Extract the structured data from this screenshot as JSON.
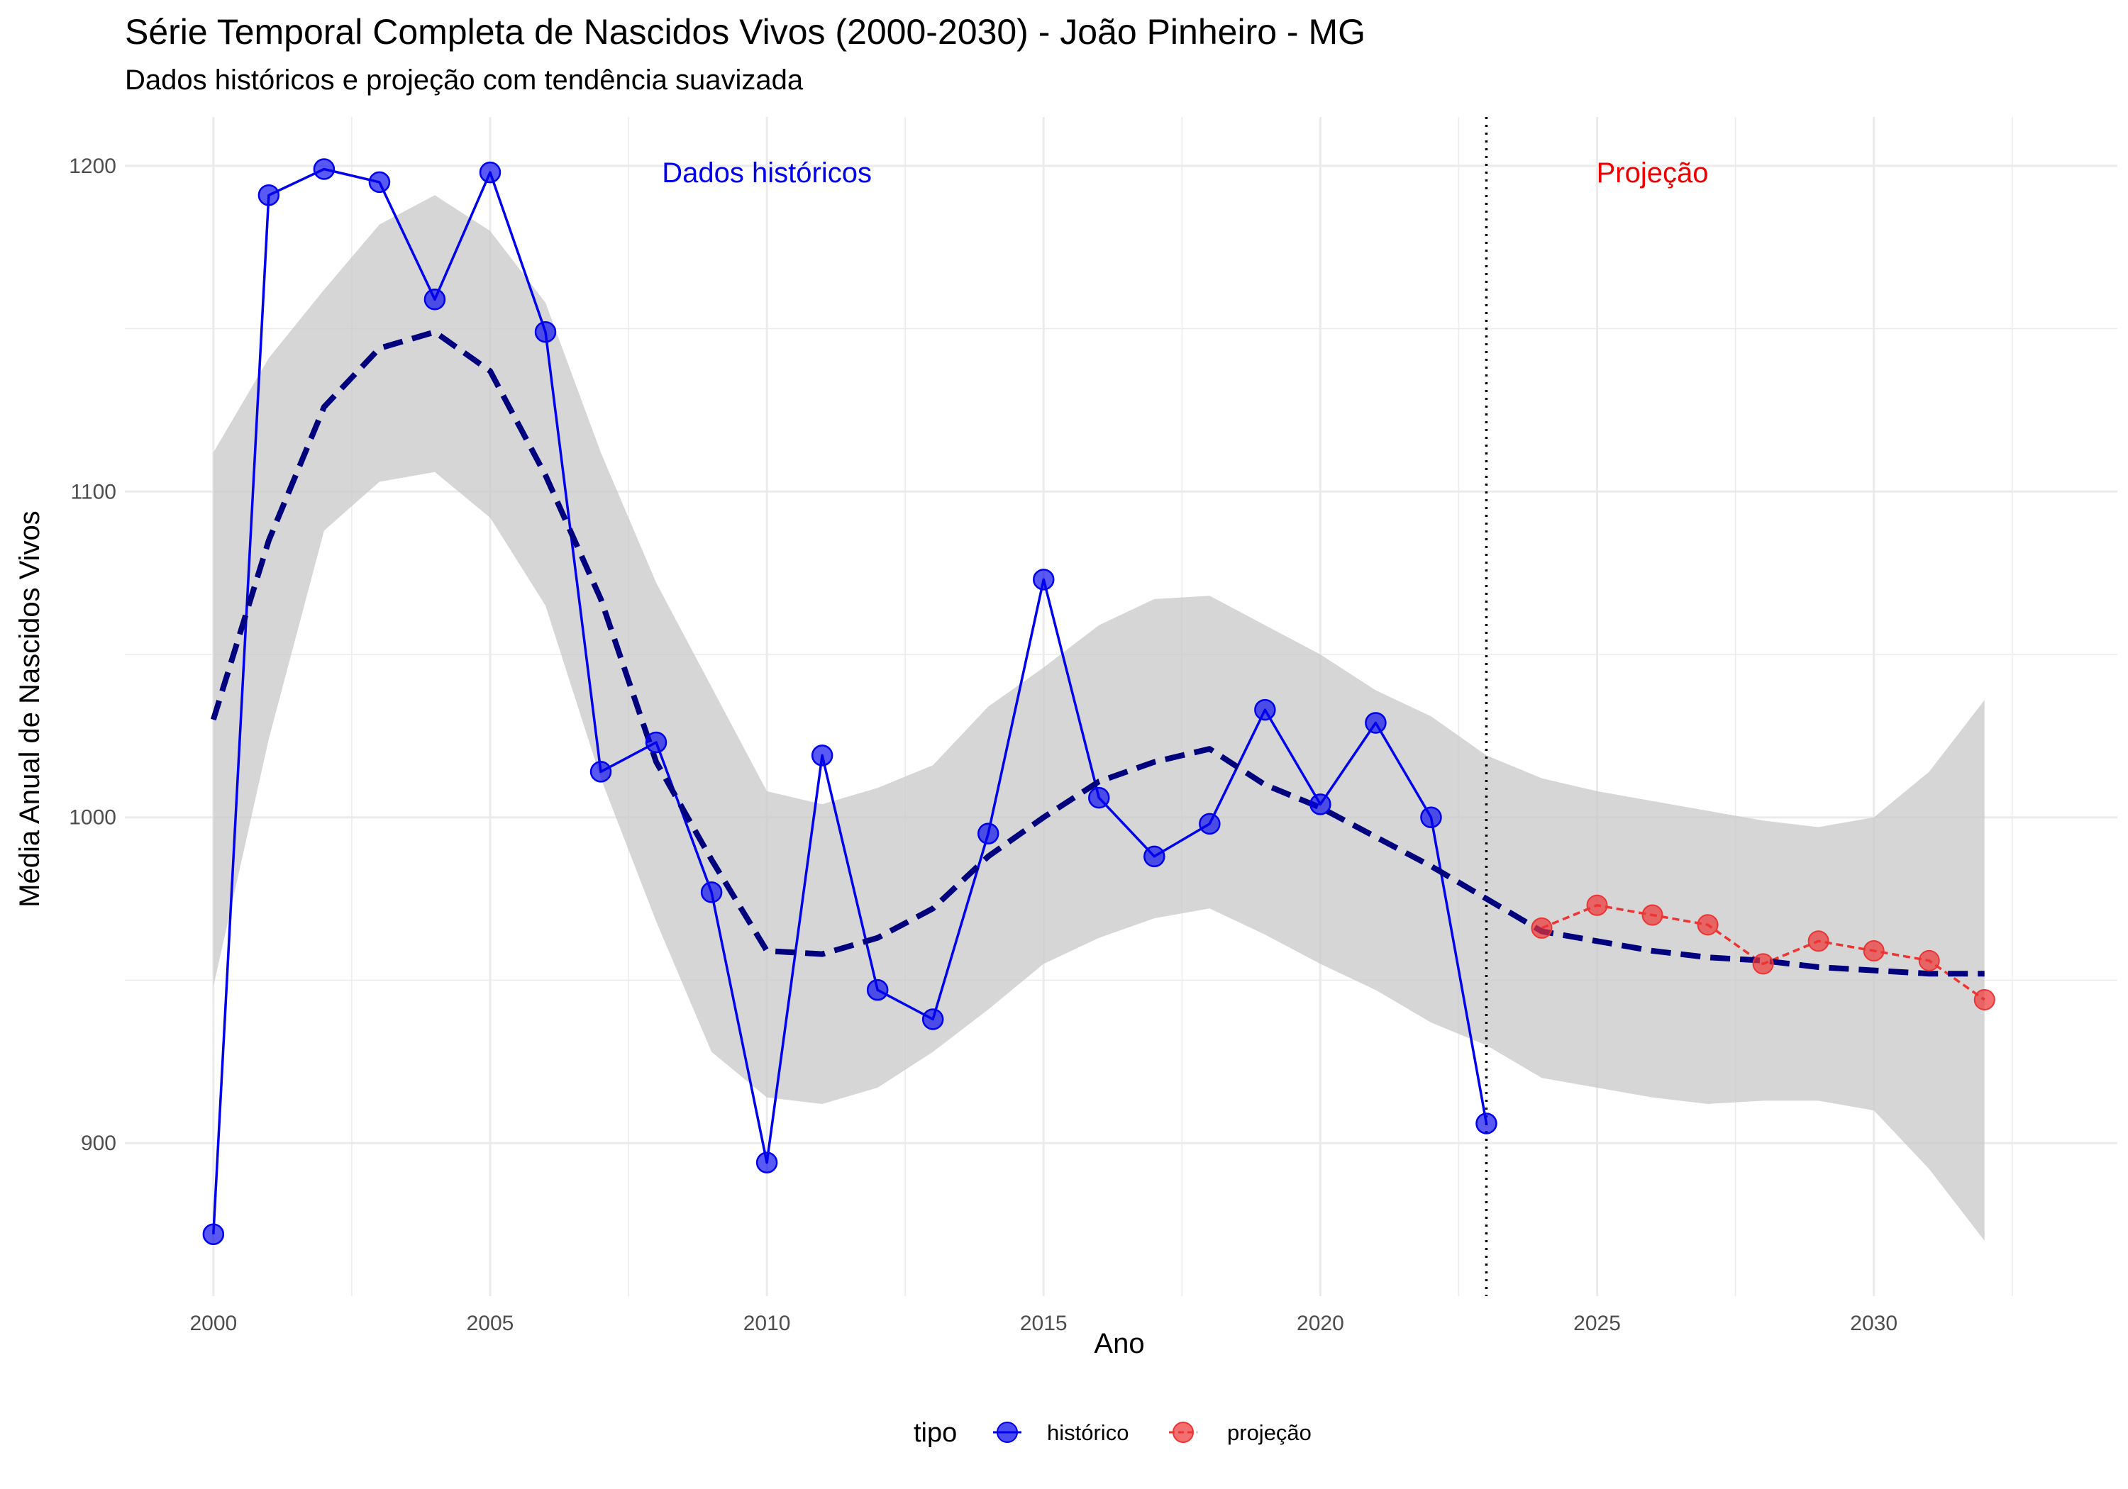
{
  "chart_data": {
    "type": "line",
    "title": "Série Temporal Completa de Nascidos Vivos (2000-2030) -  João Pinheiro - MG",
    "subtitle": "Dados históricos e projeção com tendência suavizada",
    "xlabel": "Ano",
    "ylabel": "Média Anual de Nascidos Vivos",
    "xlim": [
      1998.4,
      2034.4
    ],
    "ylim": [
      853,
      1215
    ],
    "x_ticks": [
      2000,
      2005,
      2010,
      2015,
      2020,
      2025,
      2030
    ],
    "y_ticks": [
      900,
      1000,
      1100,
      1200
    ],
    "grid": true,
    "legend_position": "bottom",
    "legend_title": "tipo",
    "colors": {
      "historico": "#0000ee",
      "projecao": "#ee3333",
      "trend": "#00007f",
      "ribbon": "#c8c8c8",
      "grid": "#ebebeb",
      "divider": "#000000"
    },
    "series": [
      {
        "name": "histórico",
        "x": [
          2000,
          2001,
          2002,
          2003,
          2004,
          2005,
          2006,
          2007,
          2008,
          2009,
          2010,
          2011,
          2012,
          2013,
          2014,
          2015,
          2016,
          2017,
          2018,
          2019,
          2020,
          2021,
          2022,
          2023
        ],
        "values": [
          872,
          1191,
          1199,
          1195,
          1159,
          1198,
          1149,
          1014,
          1023,
          977,
          894,
          1019,
          947,
          938,
          995,
          1073,
          1006,
          988,
          998,
          1033,
          1004,
          1029,
          1000,
          906
        ]
      },
      {
        "name": "projeção",
        "x": [
          2024,
          2025,
          2026,
          2027,
          2028,
          2029,
          2030,
          2031,
          2032
        ],
        "values": [
          966,
          973,
          970,
          967,
          955,
          962,
          959,
          956,
          944
        ]
      }
    ],
    "trend": {
      "name": "tendência suavizada",
      "x": [
        2000,
        2001,
        2002,
        2003,
        2004,
        2005,
        2006,
        2007,
        2008,
        2009,
        2010,
        2011,
        2012,
        2013,
        2014,
        2015,
        2016,
        2017,
        2018,
        2019,
        2020,
        2021,
        2022,
        2023,
        2024,
        2025,
        2026,
        2027,
        2028,
        2029,
        2030,
        2031,
        2032
      ],
      "values": [
        1030,
        1085,
        1126,
        1144,
        1149,
        1137,
        1105,
        1067,
        1017,
        987,
        959,
        958,
        963,
        972,
        988,
        1000,
        1011,
        1017,
        1021,
        1010,
        1003,
        994,
        985,
        975,
        965,
        962,
        959,
        957,
        956,
        954,
        953,
        952,
        952
      ],
      "upper": [
        1112,
        1141,
        1162,
        1182,
        1191,
        1180,
        1158,
        1112,
        1072,
        1040,
        1008,
        1004,
        1009,
        1016,
        1034,
        1046,
        1059,
        1067,
        1068,
        1059,
        1050,
        1039,
        1031,
        1019,
        1012,
        1008,
        1005,
        1002,
        999,
        997,
        1000,
        1014,
        1036
      ],
      "lower": [
        948,
        1024,
        1088,
        1103,
        1106,
        1092,
        1065,
        1012,
        968,
        928,
        914,
        912,
        917,
        928,
        941,
        955,
        963,
        969,
        972,
        964,
        955,
        947,
        937,
        930,
        920,
        917,
        914,
        912,
        913,
        913,
        910,
        892,
        870
      ]
    },
    "divider_x": 2023,
    "annotations": [
      {
        "text": "Dados históricos",
        "x": 2010.0,
        "y": 1198,
        "color": "#0000ee"
      },
      {
        "text": "Projeção",
        "x": 2026.0,
        "y": 1198,
        "color": "#ee0000"
      }
    ]
  }
}
